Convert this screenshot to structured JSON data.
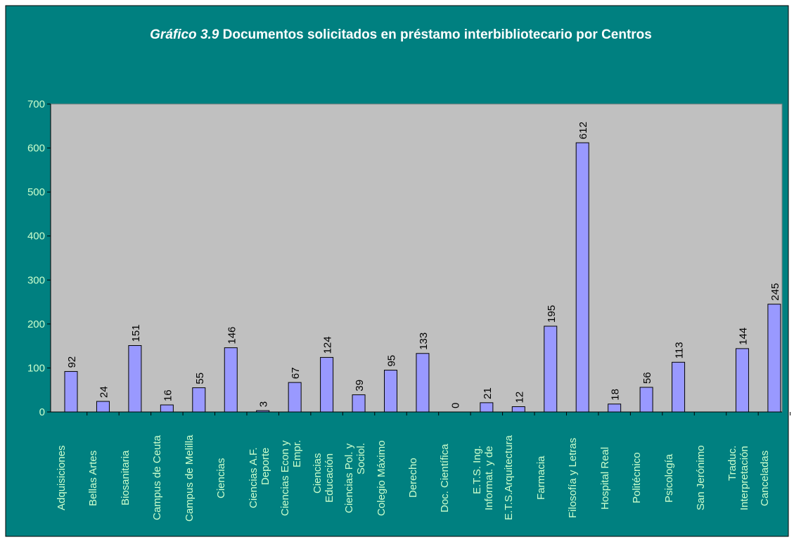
{
  "chart_data": {
    "type": "bar",
    "title_label": "Gráfico 3.9",
    "title": "Documentos solicitados en préstamo interbibliotecario por Centros",
    "categories": [
      "Adquisiciones",
      "Bellas Artes",
      "Biosanitaria",
      "Campus de Ceuta",
      "Campus de Melilla",
      "Ciencias",
      "Ciencias A.F.\nDeporte",
      "Ciencias Econ y\nEmpr.",
      "Ciencias\nEducación",
      "Ciencias Pol. y\nSociol.",
      "Colegio Máximo",
      "Derecho",
      "Doc. Científica",
      "E.T.S. Ing.\nInformat. y de",
      "E.T.S.Arquitectura",
      "Farmacia",
      "Filosofía y Letras",
      "Hospital Real",
      "Politécnico",
      "Psicología",
      "San Jerónimo",
      "Traduc.\nInterpretación",
      "Canceladas"
    ],
    "values": [
      92,
      24,
      151,
      16,
      55,
      146,
      3,
      67,
      124,
      39,
      95,
      133,
      0,
      21,
      12,
      195,
      612,
      18,
      56,
      113,
      null,
      144,
      245
    ],
    "color": "#9999ff",
    "ylim": [
      0,
      700
    ],
    "yticks": [
      0,
      100,
      200,
      300,
      400,
      500,
      600,
      700
    ],
    "grid": false
  }
}
